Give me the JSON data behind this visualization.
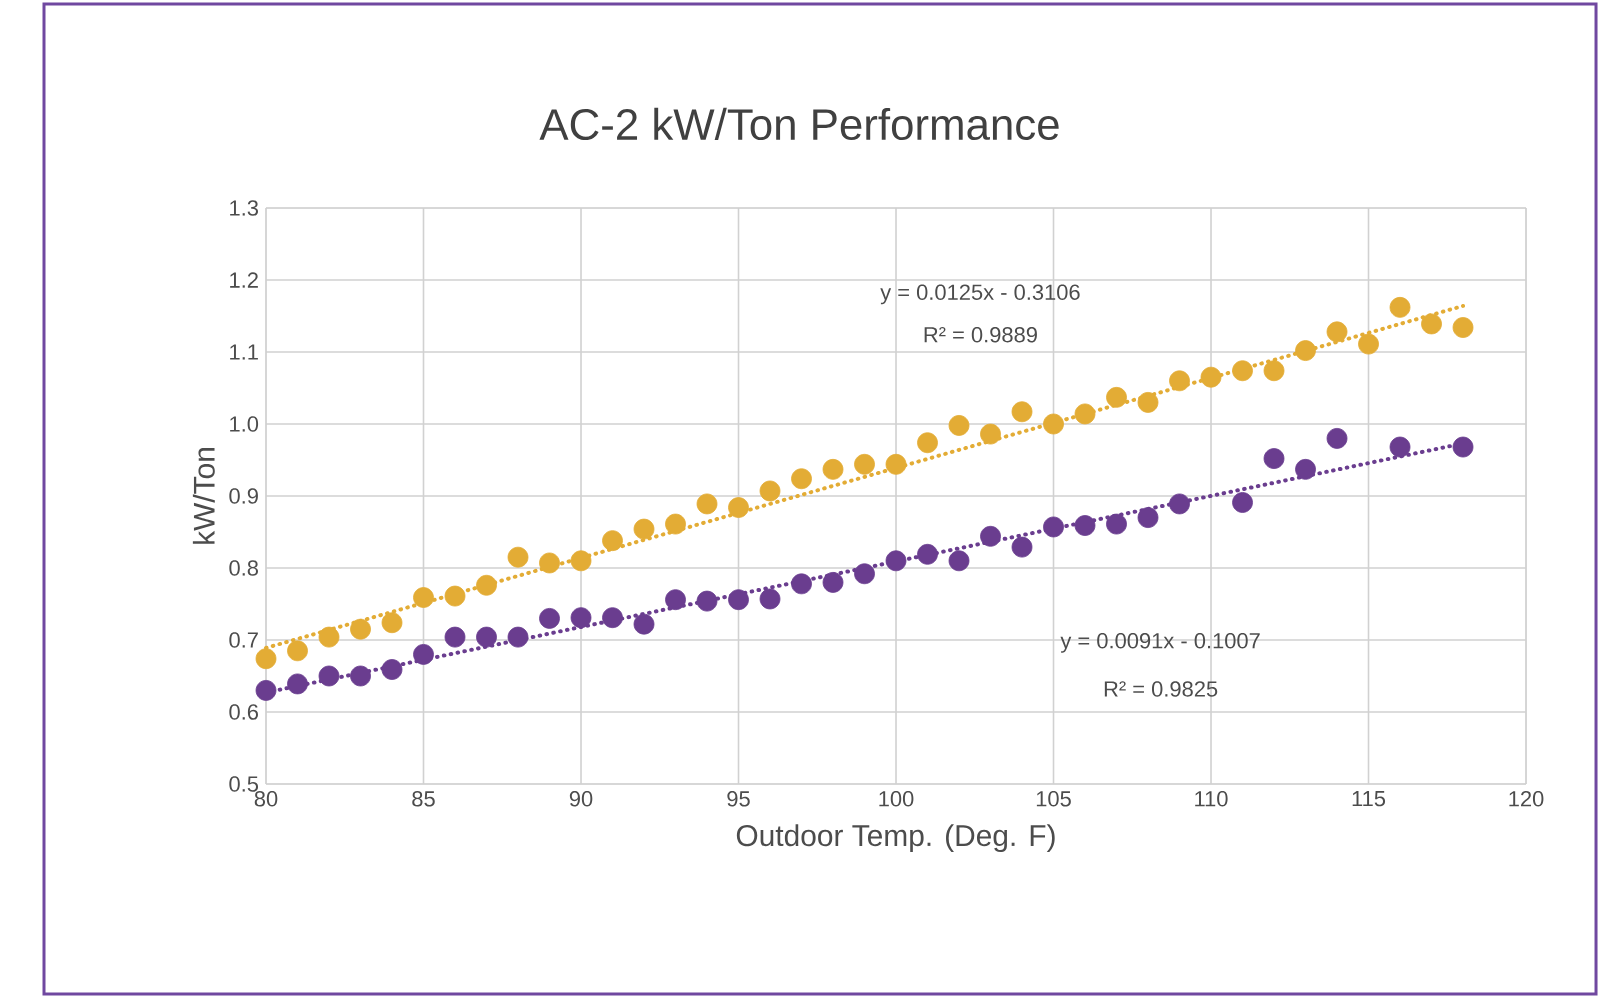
{
  "chart_data": {
    "type": "scatter",
    "title": "AC-2 kW/Ton Performance",
    "xlabel": "Outdoor Temp. (Deg. F)",
    "ylabel": "kW/Ton",
    "xlim": [
      80,
      120
    ],
    "xticks": [
      80,
      85,
      90,
      95,
      100,
      105,
      110,
      115,
      120
    ],
    "ylim": [
      0.5,
      1.3
    ],
    "yticks": [
      {
        "value": 0.5,
        "label": "0.5"
      },
      {
        "value": 0.6,
        "label": "0.6"
      },
      {
        "value": 0.7,
        "label": "0.7"
      },
      {
        "value": 0.8,
        "label": "0.8"
      },
      {
        "value": 0.9,
        "label": "0.9"
      },
      {
        "value": 1.0,
        "label": "1.0"
      },
      {
        "value": 1.1,
        "label": "1.1"
      },
      {
        "value": 1.2,
        "label": "1.2"
      },
      {
        "value": 1.3,
        "label": "1.3"
      }
    ],
    "grid": true,
    "marker": "circle",
    "series": [
      {
        "color": "#e3ac35",
        "x": [
          80,
          81,
          82,
          83,
          84,
          85,
          86,
          87,
          88,
          89,
          90,
          91,
          92,
          93,
          94,
          95,
          96,
          97,
          98,
          99,
          100,
          101,
          102,
          103,
          104,
          105,
          106,
          107,
          108,
          109,
          110,
          111,
          112,
          113,
          114,
          115,
          116,
          117,
          118
        ],
        "values": [
          0.674,
          0.685,
          0.704,
          0.715,
          0.724,
          0.759,
          0.761,
          0.776,
          0.815,
          0.807,
          0.81,
          0.838,
          0.854,
          0.861,
          0.889,
          0.884,
          0.907,
          0.924,
          0.937,
          0.944,
          0.944,
          0.974,
          0.998,
          0.986,
          1.017,
          1.0,
          1.014,
          1.037,
          1.03,
          1.06,
          1.065,
          1.074,
          1.074,
          1.102,
          1.128,
          1.111,
          1.162,
          1.139,
          1.134
        ]
      },
      {
        "color": "#6a3d8f",
        "x": [
          80,
          81,
          82,
          83,
          84,
          85,
          86,
          87,
          88,
          89,
          90,
          91,
          92,
          93,
          94,
          95,
          96,
          97,
          98,
          99,
          100,
          101,
          102,
          103,
          104,
          105,
          106,
          107,
          108,
          109,
          111,
          112,
          113,
          114,
          116,
          118
        ],
        "values": [
          0.63,
          0.639,
          0.65,
          0.65,
          0.659,
          0.68,
          0.704,
          0.704,
          0.704,
          0.73,
          0.731,
          0.731,
          0.722,
          0.756,
          0.754,
          0.756,
          0.757,
          0.778,
          0.78,
          0.792,
          0.81,
          0.819,
          0.81,
          0.844,
          0.829,
          0.857,
          0.859,
          0.861,
          0.87,
          0.889,
          0.891,
          0.952,
          0.937,
          0.98,
          0.968,
          0.968
        ]
      },
      {
        "type": "line",
        "color": "#e3ac35",
        "line_style": "dotted",
        "marker": "none",
        "x": [
          80,
          118
        ],
        "values": [
          0.689,
          1.164
        ]
      },
      {
        "type": "line",
        "color": "#6a3d8f",
        "line_style": "dotted",
        "marker": "none",
        "x": [
          80,
          118
        ],
        "values": [
          0.627,
          0.973
        ]
      }
    ],
    "annotations": [
      "y = 0.0125x - 0.3106",
      "R² = 0.9889",
      "y = 0.0091x - 0.1007",
      "R² = 0.9825"
    ]
  }
}
